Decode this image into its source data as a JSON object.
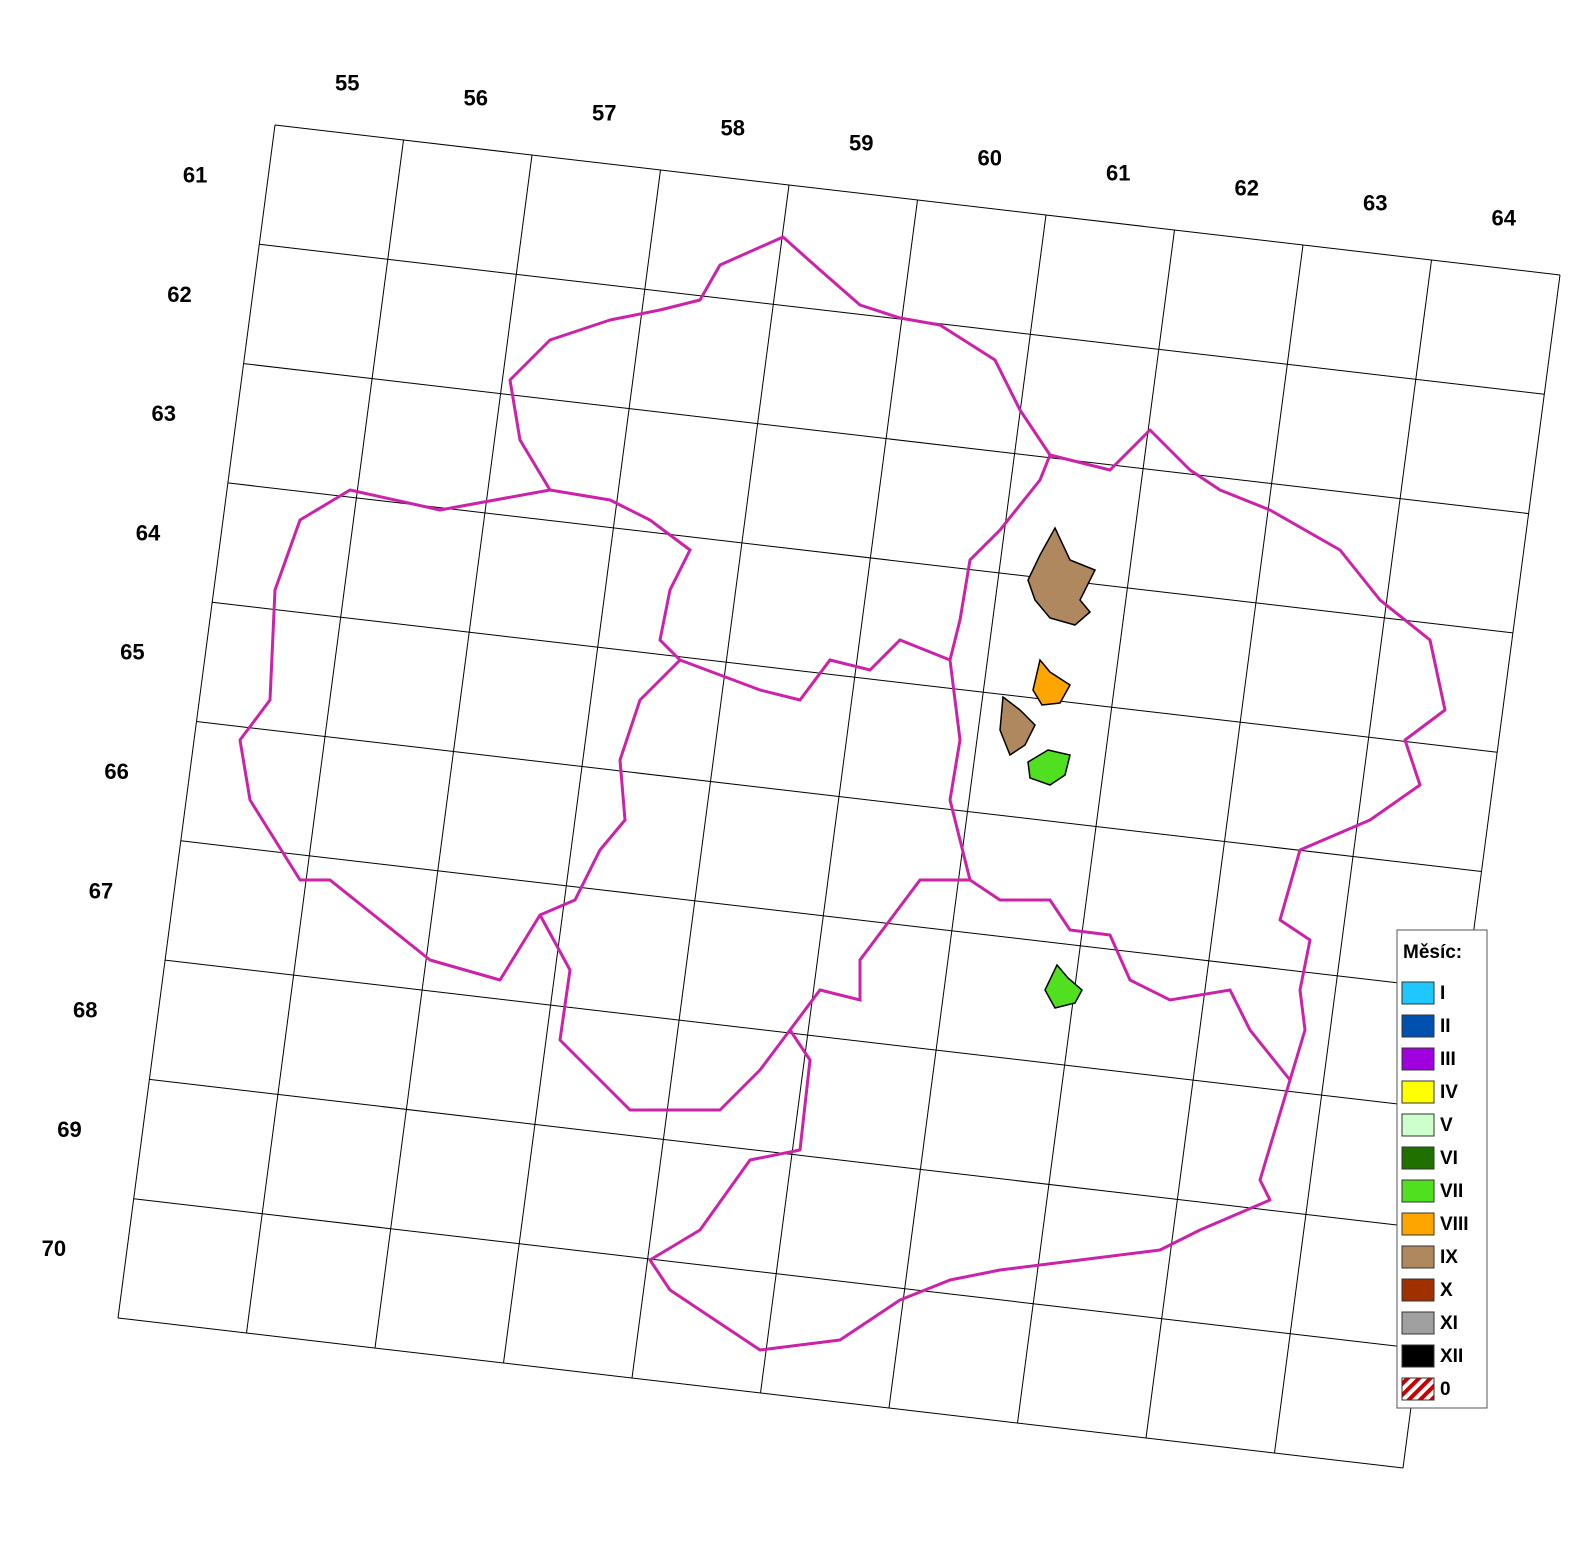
{
  "column_labels": [
    "55",
    "56",
    "57",
    "58",
    "59",
    "60",
    "61",
    "62",
    "63",
    "64"
  ],
  "row_labels": [
    "61",
    "62",
    "63",
    "64",
    "65",
    "66",
    "67",
    "68",
    "69",
    "70"
  ],
  "legend": {
    "title": "Měsíc:",
    "items": [
      {
        "label": "I",
        "color": "#1ec8ff"
      },
      {
        "label": "II",
        "color": "#0050b0"
      },
      {
        "label": "III",
        "color": "#a000e0"
      },
      {
        "label": "IV",
        "color": "#ffff00"
      },
      {
        "label": "V",
        "color": "#ccffcc"
      },
      {
        "label": "VI",
        "color": "#207000"
      },
      {
        "label": "VII",
        "color": "#50e020"
      },
      {
        "label": "VIII",
        "color": "#ffa500"
      },
      {
        "label": "IX",
        "color": "#b08860"
      },
      {
        "label": "X",
        "color": "#a03000"
      },
      {
        "label": "XI",
        "color": "#a0a0a0"
      },
      {
        "label": "XII",
        "color": "#000000"
      },
      {
        "label": "0",
        "color": "#cc0000",
        "pattern": "hatch"
      }
    ]
  }
}
